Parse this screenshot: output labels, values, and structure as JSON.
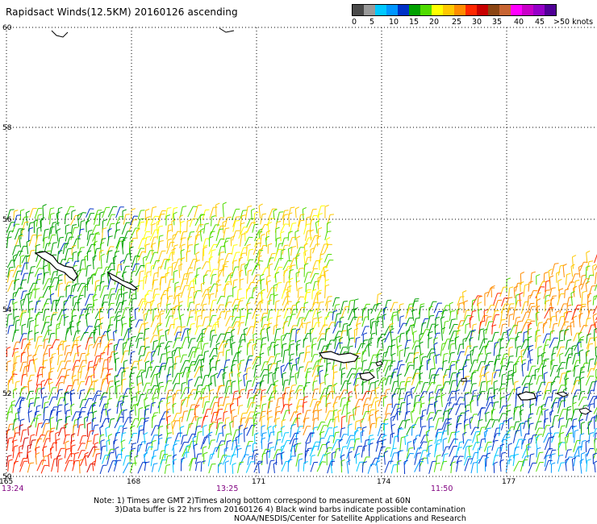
{
  "title": "Rapidsact Winds(12.5KM) 20160126 ascending",
  "legend": {
    "colors": [
      "#4a4a4a",
      "#9a9a9a",
      "#00c8ff",
      "#0096ff",
      "#0032c8",
      "#00a000",
      "#50dc00",
      "#ffff00",
      "#ffc800",
      "#ff8c00",
      "#ff2800",
      "#c80000",
      "#8b4513",
      "#c86432",
      "#ff00ff",
      "#c800c8",
      "#9600c8",
      "#500096"
    ],
    "labels": [
      "0",
      "5",
      "10",
      "15",
      "20",
      "25",
      "30",
      "35",
      "40",
      "45",
      ">50 knots"
    ]
  },
  "map": {
    "lat_labels": [
      "60",
      "58",
      "56",
      "54",
      "52",
      "50"
    ],
    "lon_labels": [
      "165",
      "168",
      "171",
      "174",
      "177"
    ],
    "time_labels": [
      "13:24",
      "13:25",
      "11:50"
    ]
  },
  "notes": [
    "Note: 1) Times are GMT 2)Times along bottom correspond to measurement at 60N",
    "3)Data buffer is 22 hrs from 20160126 4) Black wind barbs indicate possible contamination",
    "NOAA/NESDIS/Center for Satellite Applications and Research"
  ]
}
